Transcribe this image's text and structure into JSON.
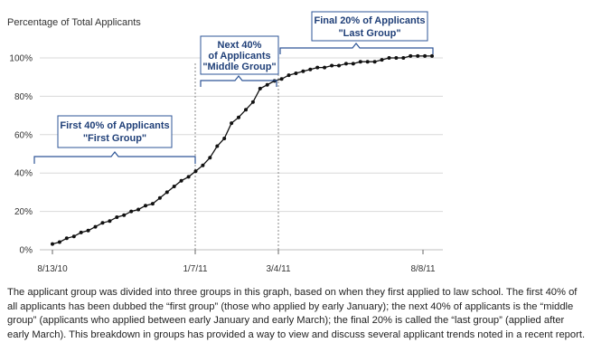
{
  "chart_data": {
    "type": "line",
    "ylabel": "Percentage of Total Applicants",
    "xlabel": "",
    "ylim": [
      0,
      100
    ],
    "y_ticks": [
      "0%",
      "20%",
      "40%",
      "60%",
      "80%",
      "100%"
    ],
    "x_tick_labels": [
      "8/13/10",
      "1/7/11",
      "3/4/11",
      "8/8/11"
    ],
    "grid": true,
    "series": [
      {
        "values": [
          3,
          4,
          6,
          7,
          9,
          10,
          12,
          14,
          15,
          17,
          18,
          20,
          21,
          23,
          24,
          27,
          30,
          33,
          36,
          38,
          41,
          44,
          48,
          54,
          58,
          66,
          69,
          73,
          77,
          84,
          86,
          88,
          89,
          91,
          92,
          93,
          94,
          95,
          95,
          96,
          96,
          97,
          97,
          98,
          98,
          98,
          99,
          100,
          100,
          100,
          101,
          101,
          101,
          101
        ]
      }
    ],
    "annotations": [
      {
        "line1": "First 40% of Applicants",
        "line2": "\"First Group\""
      },
      {
        "line1": "Next 40%",
        "line2": "of Applicants",
        "line3": "\"Middle Group\""
      },
      {
        "line1": "Final 20% of Applicants",
        "line2": "\"Last Group\""
      }
    ],
    "colors": {
      "line": "#111111",
      "grid": "#d9d9d9",
      "bracket": "#2e5597",
      "box_border": "#2e5597",
      "annotation_text": "#1f3f78"
    }
  },
  "caption": "The applicant group was divided into three groups in this graph, based on when they first applied to law school. The first 40% of all applicants has been dubbed the “first group” (those who applied by early January); the next 40% of applicants is the “middle group” (applicants who applied between early January and early March); the final 20% is called the “last group” (applied after early March). This breakdown in groups has provided a way to view and discuss several applicant trends noted in a recent report."
}
